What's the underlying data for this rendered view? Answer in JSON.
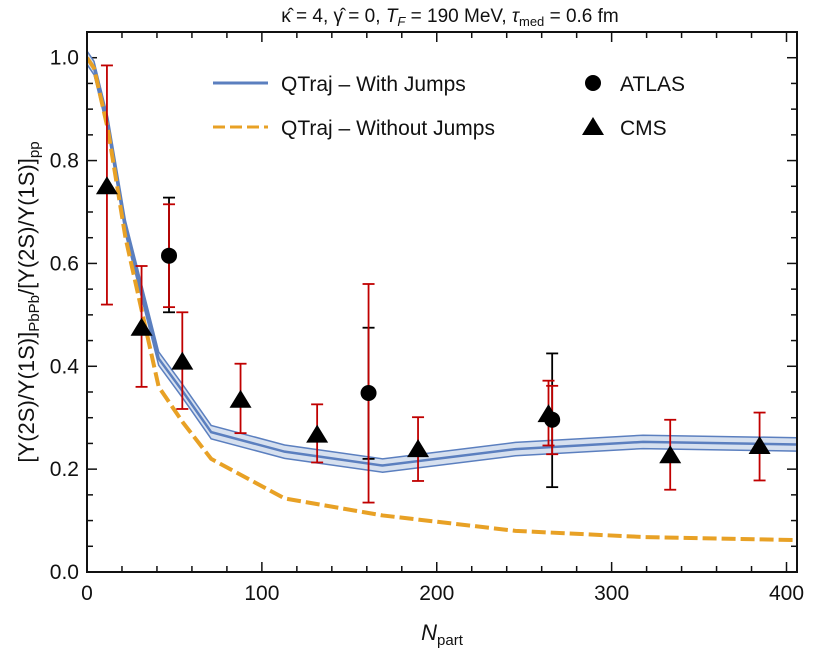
{
  "chart_data": {
    "type": "line",
    "title": "κ̂ = 4, γ̂ = 0, T_F = 190 MeV, τ_med = 0.6 fm",
    "title_parts": {
      "kappa": "κ̂ = 4, ",
      "gamma": "γ̂ = 0, ",
      "T": "T",
      "T_sub": "F",
      "T_val": " = 190 MeV, ",
      "tau": "τ",
      "tau_sub": "med",
      "tau_val": " = 0.6 fm"
    },
    "xlabel": "N",
    "xlabel_sub": "part",
    "ylabel": "[Υ(2S)/Υ(1S)]",
    "ylabel_sub1": "PbPb",
    "ylabel_mid": "/[Υ(2S)/Υ(1S)]",
    "ylabel_sub2": "pp",
    "xlim": [
      0,
      406
    ],
    "ylim": [
      0,
      1.05
    ],
    "xticks": [
      0,
      100,
      200,
      300,
      400
    ],
    "xtick_labels": [
      "0",
      "100",
      "200",
      "300",
      "400"
    ],
    "yticks": [
      0,
      0.2,
      0.4,
      0.6,
      0.8,
      1.0
    ],
    "ytick_labels": [
      "0.0",
      "0.2",
      "0.4",
      "0.6",
      "0.8",
      "1.0"
    ],
    "grid": false,
    "legend_position": "top-right",
    "series": [
      {
        "name": "QTraj – With Jumps",
        "color": "#5b7fbf",
        "band_color": "#d6e0ef",
        "style": "solid-band",
        "x": [
          0,
          4,
          12,
          22,
          41,
          55,
          71,
          113,
          169,
          245,
          318,
          406
        ],
        "y": [
          1.0,
          0.98,
          0.87,
          0.67,
          0.415,
          0.35,
          0.272,
          0.234,
          0.207,
          0.239,
          0.253,
          0.248
        ],
        "band": 0.013
      },
      {
        "name": "QTraj – Without Jumps",
        "color": "#e8a125",
        "style": "dashed",
        "x": [
          0,
          4,
          12,
          22,
          41,
          55,
          71,
          113,
          169,
          245,
          318,
          406
        ],
        "y": [
          1.0,
          0.98,
          0.86,
          0.65,
          0.36,
          0.29,
          0.22,
          0.143,
          0.11,
          0.08,
          0.068,
          0.062
        ]
      },
      {
        "name": "ATLAS",
        "marker": "circle",
        "color": "#000000",
        "stat_color": "#c00000",
        "syst_color": "#000000",
        "x": [
          46.9,
          161,
          266
        ],
        "y": [
          0.615,
          0.348,
          0.296
        ],
        "err_red": [
          [
            0.515,
            0.715
          ],
          [
            0.135,
            0.56
          ],
          [
            0.229,
            0.362
          ]
        ],
        "err_black": [
          [
            0.505,
            0.728
          ],
          [
            0.22,
            0.475
          ],
          [
            0.165,
            0.425
          ]
        ]
      },
      {
        "name": "CMS",
        "marker": "triangle",
        "color": "#000000",
        "err_color": "#c00000",
        "x": [
          11.4,
          31.2,
          54.5,
          87.8,
          131.6,
          189.3,
          263.9,
          333.5,
          384.6
        ],
        "y": [
          0.75,
          0.475,
          0.409,
          0.335,
          0.267,
          0.239,
          0.307,
          0.227,
          0.245
        ],
        "err": [
          [
            0.52,
            0.985
          ],
          [
            0.36,
            0.595
          ],
          [
            0.317,
            0.505
          ],
          [
            0.27,
            0.405
          ],
          [
            0.213,
            0.326
          ],
          [
            0.177,
            0.301
          ],
          [
            0.246,
            0.372
          ],
          [
            0.16,
            0.296
          ],
          [
            0.178,
            0.31
          ]
        ]
      }
    ]
  }
}
